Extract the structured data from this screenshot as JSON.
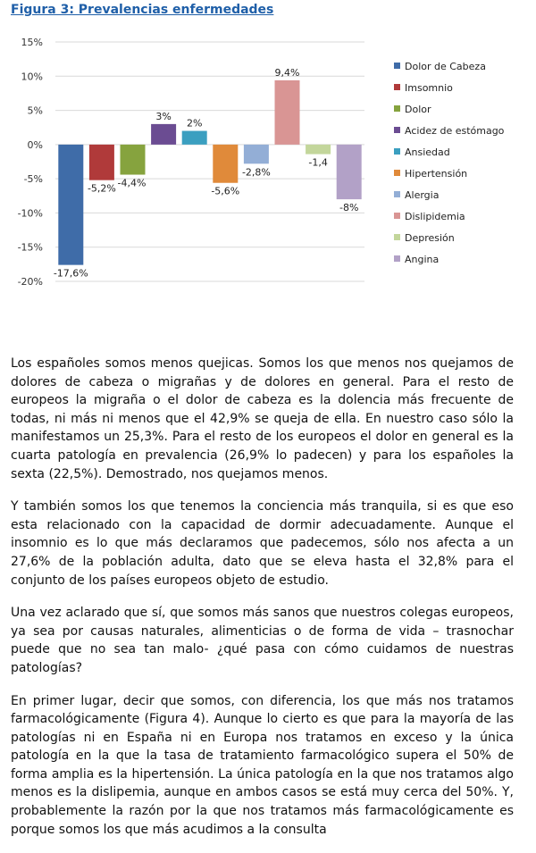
{
  "figure": {
    "title": "Figura 3: Prevalencias enfermedades"
  },
  "chart_data": {
    "type": "bar",
    "ylim": [
      -20,
      15
    ],
    "yticks": [
      15,
      10,
      5,
      0,
      -5,
      -10,
      -15,
      -20
    ],
    "ytick_labels": [
      "15%",
      "10%",
      "5%",
      "0%",
      "-5%",
      "-10%",
      "-15%",
      "-20%"
    ],
    "grid": true,
    "legend_position": "right",
    "series": [
      {
        "name": "Dolor de Cabeza",
        "value": -17.6,
        "label": "-17,6%",
        "color": "#3f6ca8"
      },
      {
        "name": "Imsomnio",
        "value": -5.2,
        "label": "-5,2%",
        "color": "#b03a3a"
      },
      {
        "name": "Dolor",
        "value": -4.4,
        "label": "-4,4%",
        "color": "#86a33e"
      },
      {
        "name": "Acidez de estómago",
        "value": 3,
        "label": "3%",
        "color": "#6b4c92"
      },
      {
        "name": "Ansiedad",
        "value": 2,
        "label": "2%",
        "color": "#3b9fc0"
      },
      {
        "name": "Hipertensión",
        "value": -5.6,
        "label": "-5,6%",
        "color": "#e08a3a"
      },
      {
        "name": "Alergia",
        "value": -2.8,
        "label": "-2,8%",
        "color": "#93aed6"
      },
      {
        "name": "Dislipidemia",
        "value": 9.4,
        "label": "9,4%",
        "color": "#d99594"
      },
      {
        "name": "Depresión",
        "value": -1.4,
        "label": "-1,4",
        "color": "#c3d69b"
      },
      {
        "name": "Angina",
        "value": -8,
        "label": "-8%",
        "color": "#b2a1c7"
      }
    ]
  },
  "article": {
    "paragraphs": [
      "Los españoles somos menos quejicas. Somos los que menos nos quejamos de dolores de cabeza o migrañas y de dolores en general. Para el resto de europeos la migraña o el dolor de cabeza es la dolencia más frecuente de todas, ni más ni menos que el 42,9% se queja de ella. En nuestro caso sólo la manifestamos un 25,3%. Para el resto de los europeos el dolor en general es la cuarta patología en prevalencia (26,9% lo padecen) y para los españoles la sexta (22,5%). Demostrado, nos quejamos menos.",
      "Y también somos los que tenemos la conciencia más tranquila, si es que eso esta relacionado con la capacidad de dormir adecuadamente. Aunque el insomnio es lo que más declaramos que padecemos, sólo nos afecta a un 27,6% de la población adulta, dato que se eleva hasta el 32,8%  para el conjunto de los países europeos objeto de estudio.",
      "Una vez aclarado que sí, que somos más sanos que nuestros colegas europeos, ya sea por causas naturales, alimenticias o de forma de vida – trasnochar puede que no sea tan malo- ¿qué pasa con cómo cuidamos de nuestras patologías?",
      "En primer lugar, decir que somos, con diferencia, los que más nos tratamos farmacológicamente (Figura 4). Aunque lo cierto es que para la mayoría de las patologías ni en España ni en Europa nos tratamos en exceso y la única patología en la que la tasa de tratamiento farmacológico supera el 50% de forma amplia es la hipertensión. La única patología en la que nos tratamos algo menos es la dislipemia, aunque en ambos casos se está muy cerca del 50%. Y, probablemente la razón por la que nos tratamos más farmacológicamente es porque somos los que más acudimos a la consulta"
    ]
  }
}
